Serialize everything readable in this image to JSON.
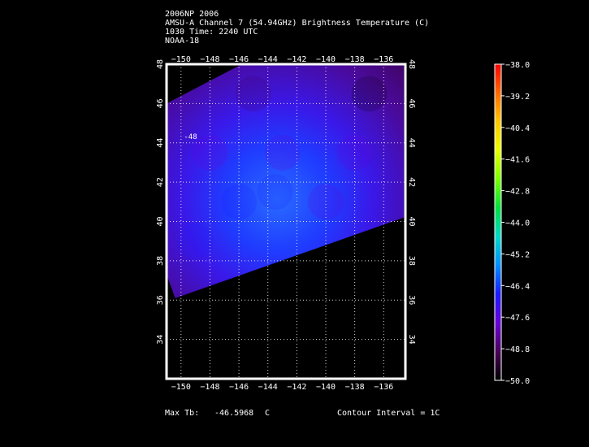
{
  "header": {
    "line1": "2006NP 2006",
    "line2": "AMSU-A Channel 7 (54.94GHz) Brightness Temperature (C)",
    "line3": "1030 Time: 2240 UTC",
    "line4": "NOAA-18"
  },
  "footer": {
    "max_label": "Max Tb:",
    "max_value": "-46.5968",
    "max_unit": "C",
    "contour_text": "Contour Interval = 1C"
  },
  "chart_data": {
    "type": "heatmap",
    "title": "AMSU-A Channel 7 (54.94GHz) Brightness Temperature (C)",
    "xlim": [
      -151,
      -134.5
    ],
    "ylim": [
      32,
      48
    ],
    "x_ticks": [
      -150,
      -148,
      -146,
      -144,
      -142,
      -140,
      -138,
      -136
    ],
    "y_ticks": [
      34,
      36,
      38,
      40,
      42,
      44,
      46,
      48
    ],
    "grid": true,
    "swath_polygon": [
      [
        -151,
        46.0
      ],
      [
        -145.8,
        48.0
      ],
      [
        -134.6,
        48.0
      ],
      [
        -134.6,
        40.2
      ],
      [
        -150.4,
        36.1
      ],
      [
        -151,
        37.3
      ]
    ],
    "field_samples": [
      {
        "lon": -143.5,
        "lat": 41.5,
        "tb": -46.6
      },
      {
        "lon": -146.0,
        "lat": 41.0,
        "tb": -47.1
      },
      {
        "lon": -140.0,
        "lat": 41.0,
        "tb": -47.3
      },
      {
        "lon": -143.0,
        "lat": 43.5,
        "tb": -47.6
      },
      {
        "lon": -148.0,
        "lat": 43.5,
        "tb": -47.8
      },
      {
        "lon": -138.0,
        "lat": 43.5,
        "tb": -48.1
      },
      {
        "lon": -145.0,
        "lat": 46.5,
        "tb": -49.2
      },
      {
        "lon": -137.0,
        "lat": 46.5,
        "tb": -49.6
      },
      {
        "lon": -149.0,
        "lat": 39.0,
        "tb": -47.2
      }
    ],
    "contour_label": {
      "value": "-48",
      "lon": -149.8,
      "lat": 44.2
    },
    "colorbar": {
      "min": -50.0,
      "max": -38.0,
      "tick_labels": [
        "-38.0",
        "-39.2",
        "-40.4",
        "-41.6",
        "-42.8",
        "-44.0",
        "-45.2",
        "-46.4",
        "-47.6",
        "-48.8",
        "-50.0"
      ],
      "colors": [
        "#ff0000",
        "#ff6a00",
        "#ffc800",
        "#e8ff00",
        "#7aff00",
        "#00e040",
        "#00d8c8",
        "#0090ff",
        "#1a1aff",
        "#6a00d8",
        "#4a0058",
        "#000000"
      ]
    }
  }
}
